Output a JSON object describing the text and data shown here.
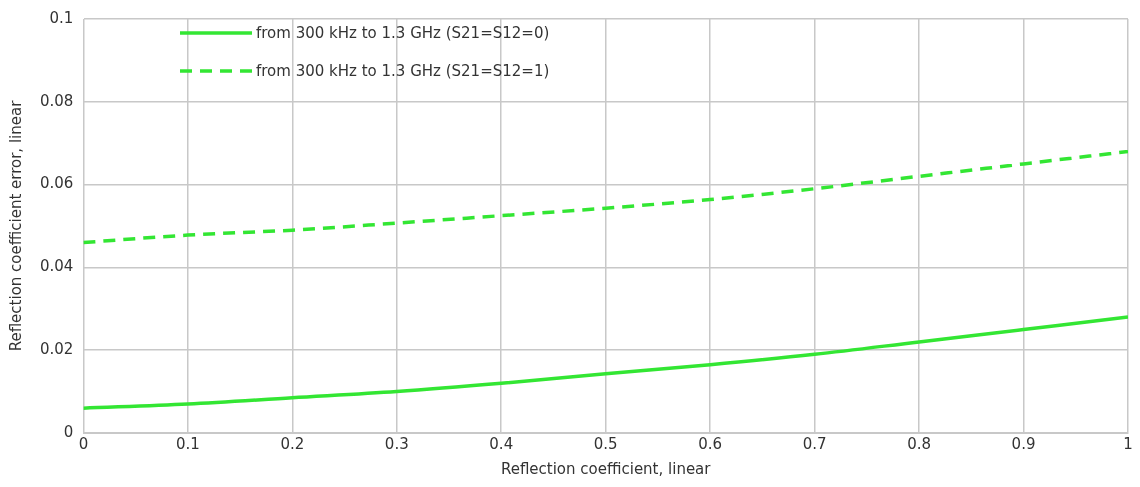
{
  "chart_data": {
    "type": "line",
    "xlabel": "Reflection coefficient, linear",
    "ylabel": "Reflection coefficient error, linear",
    "x": [
      0,
      0.1,
      0.2,
      0.3,
      0.4,
      0.5,
      0.6,
      0.7,
      0.8,
      0.9,
      1
    ],
    "series": [
      {
        "name": "from 300 kHz to 1.3 GHz (S21=S12=0)",
        "color": "#33e633",
        "line_style": "solid",
        "values": [
          0.006,
          0.007,
          0.0085,
          0.01,
          0.012,
          0.0143,
          0.0165,
          0.019,
          0.022,
          0.025,
          0.028
        ]
      },
      {
        "name": "from 300 kHz to 1.3 GHz (S21=S12=1)",
        "color": "#33e633",
        "line_style": "dashed",
        "values": [
          0.046,
          0.0478,
          0.049,
          0.0507,
          0.0525,
          0.0543,
          0.0564,
          0.059,
          0.062,
          0.065,
          0.068
        ]
      }
    ],
    "xlim": [
      0,
      1
    ],
    "xticks": [
      0,
      0.1,
      0.2,
      0.3,
      0.4,
      0.5,
      0.6,
      0.7,
      0.8,
      0.9,
      1
    ],
    "ylim": [
      0,
      0.1
    ],
    "yticks": [
      0,
      0.02,
      0.04,
      0.06,
      0.08,
      0.1
    ],
    "grid": true,
    "legend": "top left",
    "marker": "none"
  }
}
